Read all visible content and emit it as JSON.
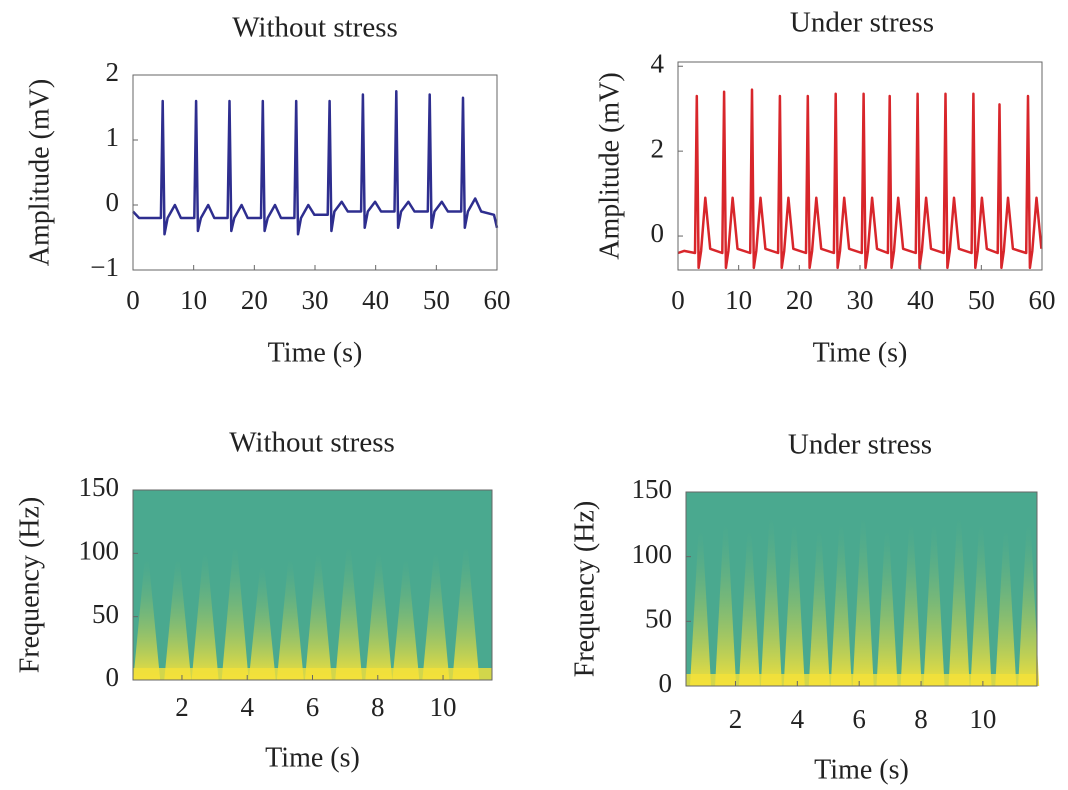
{
  "chart_data": [
    {
      "type": "line",
      "title": "Without stress",
      "xlabel": "Time (s)",
      "ylabel": "Amplitude (mV)",
      "xlim": [
        0,
        60
      ],
      "ylim": [
        -1,
        2
      ],
      "xticks": [
        0,
        10,
        20,
        30,
        40,
        50,
        60
      ],
      "yticks": [
        {
          "value": -1,
          "label": "−1"
        },
        0,
        1,
        2
      ],
      "grid": false,
      "color": "#2e2e8f",
      "x": [
        0,
        1,
        3,
        4.6,
        4.9,
        5.2,
        5.7,
        6.9,
        7.9,
        10.1,
        10.4,
        10.7,
        11.2,
        12.4,
        13.4,
        15.6,
        15.9,
        16.2,
        16.7,
        17.9,
        18.9,
        21.1,
        21.4,
        21.7,
        22.2,
        23.4,
        24.4,
        26.6,
        26.9,
        27.2,
        27.7,
        28.9,
        29.9,
        32.1,
        32.4,
        32.7,
        33.2,
        34.4,
        35.4,
        37.6,
        37.9,
        38.2,
        38.7,
        39.9,
        40.9,
        43.1,
        43.4,
        43.7,
        44.2,
        45.4,
        46.4,
        48.6,
        48.9,
        49.2,
        49.7,
        50.9,
        51.9,
        54.1,
        54.4,
        54.7,
        55.2,
        56.4,
        57.4,
        59.5,
        60
      ],
      "values": [
        -0.1,
        -0.2,
        -0.2,
        -0.2,
        1.6,
        -0.45,
        -0.2,
        0.0,
        -0.2,
        -0.2,
        1.6,
        -0.4,
        -0.2,
        0.0,
        -0.2,
        -0.2,
        1.6,
        -0.4,
        -0.2,
        0.0,
        -0.2,
        -0.2,
        1.6,
        -0.4,
        -0.2,
        0.0,
        -0.2,
        -0.2,
        1.6,
        -0.45,
        -0.2,
        0.0,
        -0.15,
        -0.15,
        1.6,
        -0.4,
        -0.1,
        0.05,
        -0.1,
        -0.1,
        1.7,
        -0.35,
        -0.1,
        0.05,
        -0.1,
        -0.1,
        1.75,
        -0.35,
        -0.1,
        0.05,
        -0.1,
        -0.1,
        1.7,
        -0.35,
        -0.1,
        0.05,
        -0.1,
        -0.1,
        1.65,
        -0.35,
        -0.1,
        0.1,
        -0.1,
        -0.15,
        -0.35
      ]
    },
    {
      "type": "line",
      "title": "Under stress",
      "xlabel": "Time (s)",
      "ylabel": "Amplitude (mV)",
      "xlim": [
        0,
        60
      ],
      "ylim": [
        -0.8,
        4.1
      ],
      "xticks": [
        0,
        10,
        20,
        30,
        40,
        50,
        60
      ],
      "yticks": [
        0,
        2,
        4
      ],
      "grid": false,
      "color": "#d8262b",
      "x": [
        0,
        1,
        2.8,
        3.1,
        3.4,
        3.8,
        4.5,
        5.3,
        7.3,
        7.6,
        7.9,
        8.3,
        9.0,
        9.8,
        11.9,
        12.2,
        12.5,
        12.9,
        13.6,
        14.4,
        16.5,
        16.8,
        17.1,
        17.5,
        18.2,
        19.0,
        21.1,
        21.4,
        21.7,
        22.1,
        22.8,
        23.6,
        25.7,
        26.0,
        26.3,
        26.7,
        27.4,
        28.2,
        30.3,
        30.6,
        30.9,
        31.3,
        32.0,
        32.8,
        34.6,
        34.9,
        35.2,
        35.6,
        36.3,
        37.1,
        39.2,
        39.5,
        39.8,
        40.2,
        40.9,
        41.7,
        43.8,
        44.1,
        44.4,
        44.8,
        45.5,
        46.3,
        48.4,
        48.7,
        49.0,
        49.4,
        50.1,
        50.9,
        52.7,
        53.0,
        53.3,
        53.7,
        54.4,
        55.2,
        57.4,
        57.7,
        58.0,
        58.4,
        59.1,
        59.9
      ],
      "values": [
        -0.4,
        -0.35,
        -0.4,
        3.3,
        -0.75,
        -0.35,
        0.9,
        -0.3,
        -0.4,
        3.4,
        -0.75,
        -0.35,
        0.9,
        -0.3,
        -0.4,
        3.45,
        -0.75,
        -0.35,
        0.9,
        -0.3,
        -0.4,
        3.3,
        -0.75,
        -0.35,
        0.9,
        -0.3,
        -0.4,
        3.3,
        -0.75,
        -0.35,
        0.9,
        -0.3,
        -0.4,
        3.35,
        -0.75,
        -0.35,
        0.9,
        -0.3,
        -0.4,
        3.35,
        -0.75,
        -0.35,
        0.9,
        -0.3,
        -0.4,
        3.3,
        -0.75,
        -0.35,
        0.9,
        -0.3,
        -0.4,
        3.35,
        -0.75,
        -0.35,
        0.9,
        -0.3,
        -0.4,
        3.35,
        -0.75,
        -0.35,
        0.9,
        -0.3,
        -0.4,
        3.35,
        -0.75,
        -0.35,
        0.9,
        -0.3,
        -0.4,
        3.1,
        -0.75,
        -0.35,
        0.9,
        -0.3,
        -0.4,
        3.3,
        -0.75,
        -0.35,
        0.9,
        -0.3
      ]
    },
    {
      "type": "spectrogram",
      "title": "Without stress",
      "xlabel": "Time (s)",
      "ylabel": "Frequency (Hz)",
      "xlim": [
        0.5,
        11.5
      ],
      "ylim": [
        0,
        150
      ],
      "xticks": [
        2,
        4,
        6,
        8,
        10
      ],
      "yticks": [
        0,
        50,
        100,
        150
      ],
      "colors": [
        "#4aa98f",
        "#f4e13a"
      ],
      "x": [
        0.92,
        1.87,
        2.71,
        3.63,
        4.46,
        5.32,
        6.18,
        7.11,
        8.03,
        8.86,
        9.78,
        10.7
      ],
      "values": [
        95,
        95,
        100,
        105,
        90,
        95,
        100,
        105,
        100,
        95,
        100,
        105
      ]
    },
    {
      "type": "spectrogram",
      "title": "Under stress",
      "xlabel": "Time (s)",
      "ylabel": "Frequency (Hz)",
      "xlim": [
        0.4,
        11.75
      ],
      "ylim": [
        0,
        150
      ],
      "xticks": [
        2,
        4,
        6,
        8,
        10
      ],
      "yticks": [
        0,
        50,
        100,
        150
      ],
      "colors": [
        "#4aa98f",
        "#f4e13a"
      ],
      "x": [
        0.87,
        1.68,
        2.45,
        3.16,
        3.9,
        4.71,
        5.42,
        6.13,
        6.9,
        7.68,
        8.42,
        9.23,
        9.94,
        10.74,
        11.48
      ],
      "values": [
        120,
        125,
        120,
        130,
        125,
        120,
        125,
        130,
        120,
        125,
        125,
        130,
        125,
        120,
        125
      ]
    }
  ]
}
